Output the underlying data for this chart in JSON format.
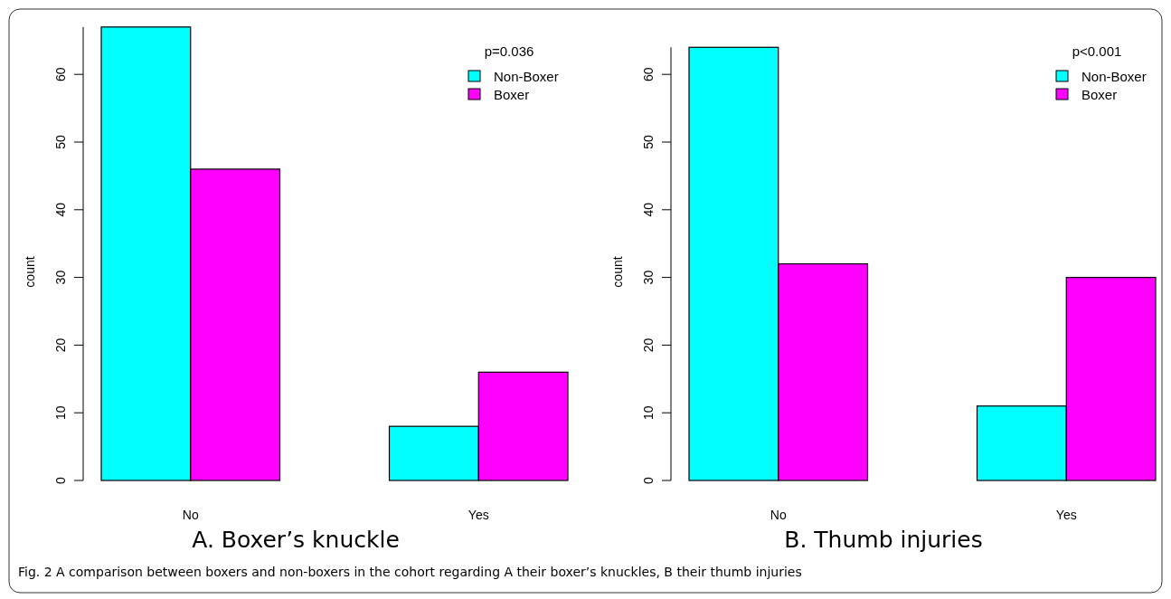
{
  "chart_data": [
    {
      "type": "bar",
      "title": "A. Boxer’s knuckle",
      "ylabel": "count",
      "legend_title": "p=0.036",
      "legend": "top right",
      "categories": [
        "No",
        "Yes"
      ],
      "series": [
        {
          "name": "Non-Boxer",
          "color": "#00ffff",
          "values": [
            67,
            8
          ]
        },
        {
          "name": "Boxer",
          "color": "#ff00ff",
          "values": [
            46,
            16
          ]
        }
      ],
      "ylim": [
        0,
        67
      ],
      "yticks": [
        0,
        10,
        20,
        30,
        40,
        50,
        60
      ],
      "annotations": [
        "Fig. 2  A comparison between boxers and non-boxers in the cohort regarding A their boxer’s knuckles, B their thumb injuries"
      ]
    },
    {
      "type": "bar",
      "title": "B. Thumb injuries",
      "ylabel": "count",
      "legend_title": "p<0.001",
      "legend": "top right",
      "categories": [
        "No",
        "Yes"
      ],
      "series": [
        {
          "name": "Non-Boxer",
          "color": "#00ffff",
          "values": [
            64,
            11
          ]
        },
        {
          "name": "Boxer",
          "color": "#ff00ff",
          "values": [
            32,
            30
          ]
        }
      ],
      "ylim": [
        0,
        64
      ],
      "yticks": [
        0,
        10,
        20,
        30,
        40,
        50,
        60
      ]
    }
  ]
}
